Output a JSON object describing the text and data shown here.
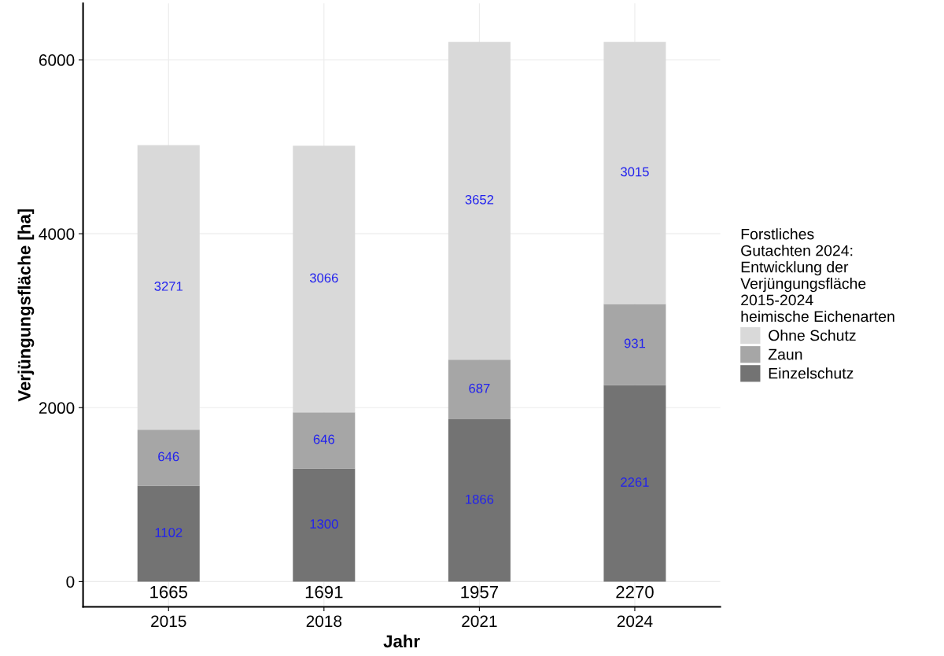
{
  "chart_data": {
    "type": "bar",
    "stacked": true,
    "xlabel": "Jahr",
    "ylabel": "Verjüngungsfläche [ha]",
    "legend_title": "Forstliches\nGutachten 2024:\nEntwicklung der\nVerjüngungsfläche\n2015-2024\nheimische Eichenarten",
    "categories": [
      "2015",
      "2018",
      "2021",
      "2024"
    ],
    "series": [
      {
        "name": "Einzelschutz",
        "color": "#737373",
        "values": [
          1102,
          1300,
          1866,
          2261
        ]
      },
      {
        "name": "Zaun",
        "color": "#a6a6a6",
        "values": [
          646,
          646,
          687,
          931
        ]
      },
      {
        "name": "Ohne Schutz",
        "color": "#d9d9d9",
        "values": [
          3271,
          3066,
          3652,
          3015
        ]
      }
    ],
    "annotations": [
      "1665",
      "1691",
      "1957",
      "2270"
    ],
    "ylim": [
      -290,
      6650
    ],
    "yticks": [
      0,
      2000,
      4000,
      6000
    ],
    "grid": true,
    "legend": "right",
    "data_labels": true
  }
}
